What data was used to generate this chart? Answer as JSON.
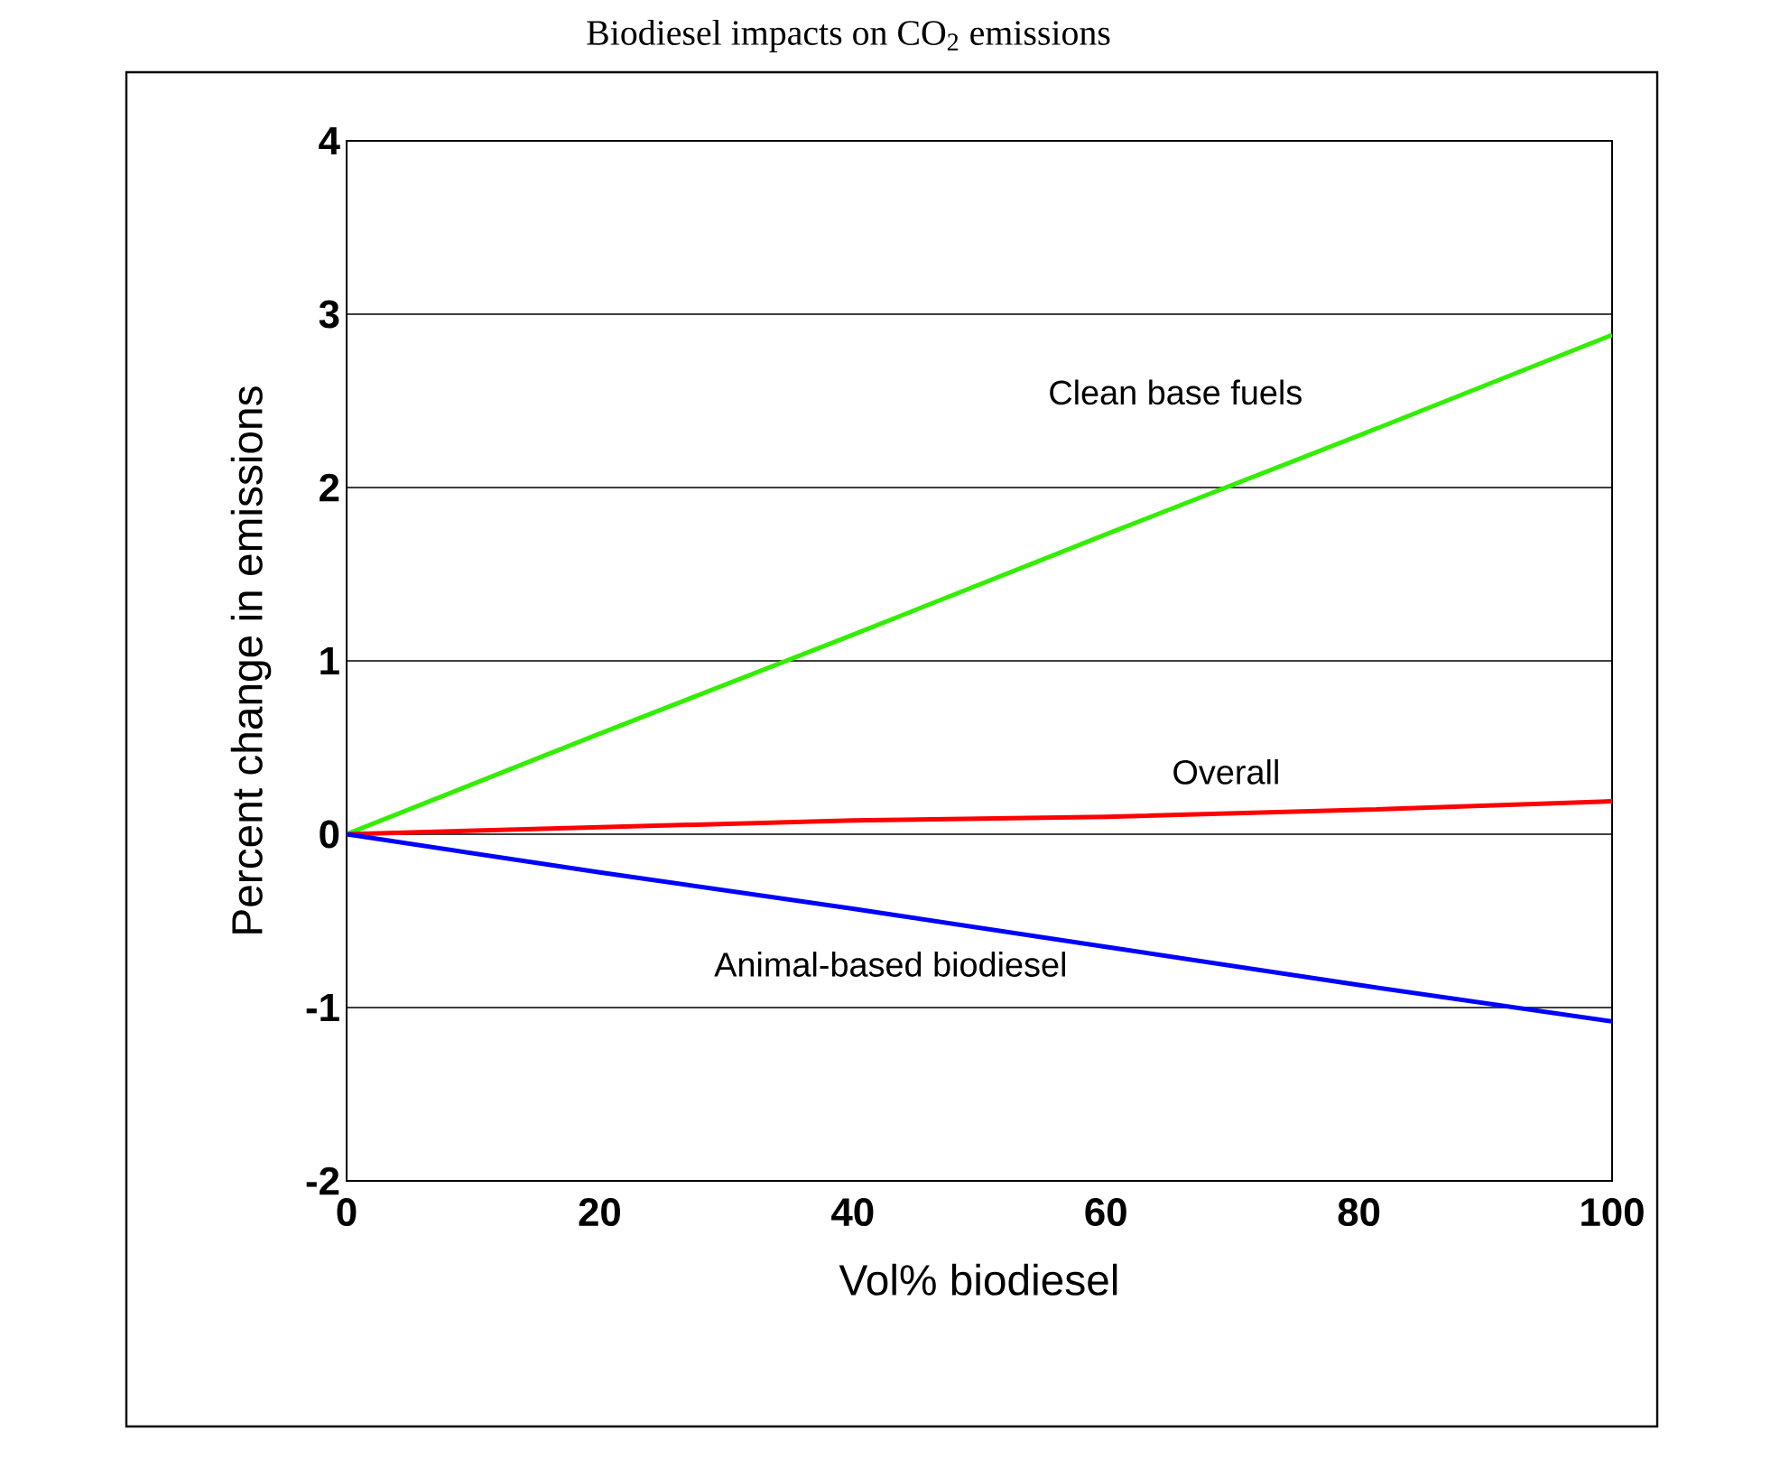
{
  "chart_data": {
    "type": "line",
    "title": "Biodiesel impacts on CO$_{2}$ emissions",
    "xlabel": "Vol% biodiesel",
    "ylabel": "Percent change in emissions",
    "x": [
      0,
      20,
      40,
      60,
      80,
      100
    ],
    "series": [
      {
        "name": "Clean base fuels",
        "color": "#33ee00",
        "values": [
          0,
          0.58,
          1.15,
          1.73,
          2.3,
          2.88
        ]
      },
      {
        "name": "Overall",
        "color": "#ff0000",
        "values": [
          0,
          0.04,
          0.08,
          0.1,
          0.14,
          0.19
        ]
      },
      {
        "name": "Animal-based biodiesel",
        "color": "#0000ff",
        "values": [
          0,
          -0.22,
          -0.43,
          -0.65,
          -0.87,
          -1.08
        ]
      }
    ],
    "xlim": [
      0,
      100
    ],
    "ylim": [
      -2,
      4
    ],
    "xticks": [
      0,
      20,
      40,
      60,
      80,
      100
    ],
    "yticks": [
      -2,
      -1,
      0,
      1,
      2,
      3,
      4
    ],
    "grid": "y",
    "marker": "none",
    "line_style": "solid"
  }
}
